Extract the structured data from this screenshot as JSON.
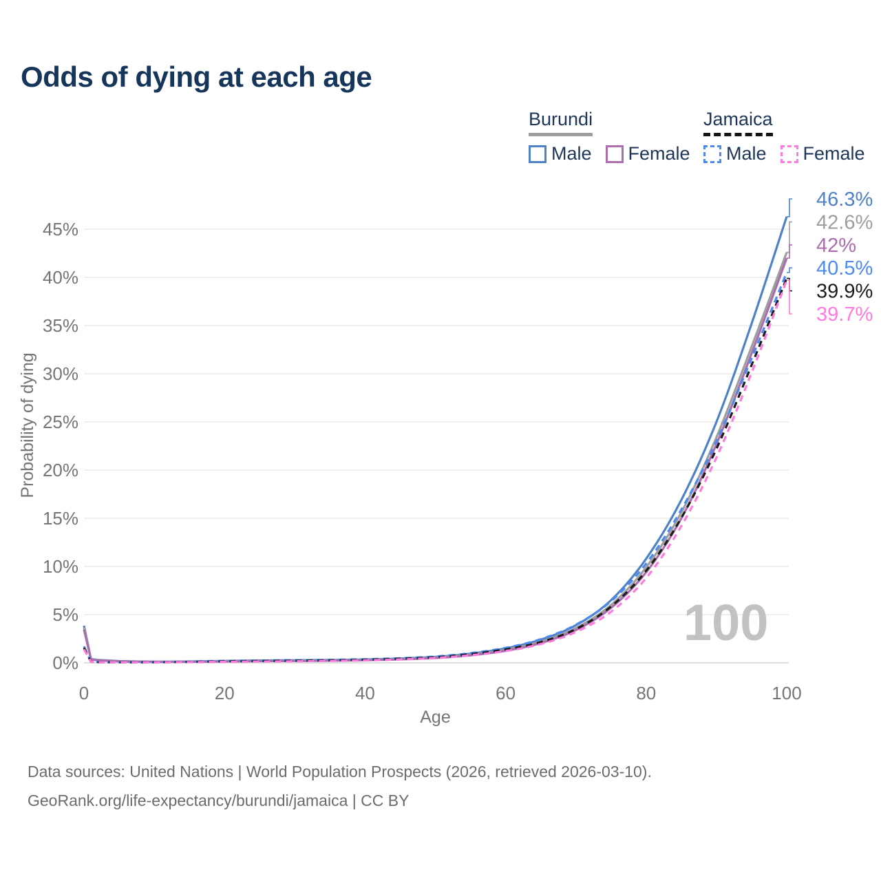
{
  "title": "Odds of dying at each age",
  "watermark": "100",
  "footer": {
    "line1": "Data sources: United Nations | World Population Prospects (2026, retrieved 2026-03-10).",
    "line2": "GeoRank.org/life-expectancy/burundi/jamaica | CC BY"
  },
  "legend": {
    "groups": [
      {
        "name": "Burundi",
        "line_style": "solid",
        "underline_color": "#9e9e9e",
        "items": [
          {
            "label": "Male",
            "color": "#4f81c7",
            "dashed": false
          },
          {
            "label": "Female",
            "color": "#ab6dad",
            "dashed": false
          }
        ]
      },
      {
        "name": "Jamaica",
        "line_style": "dashed",
        "underline_color": "#141414",
        "items": [
          {
            "label": "Male",
            "color": "#4d8af0",
            "dashed": true
          },
          {
            "label": "Female",
            "color": "#ff7ade",
            "dashed": true
          }
        ]
      }
    ]
  },
  "colors": {
    "title_navy": "#16355a",
    "axis_text": "#757575",
    "grid": "#eaeaea",
    "zero_line": "#dedede",
    "watermark": "#c2c2c2",
    "footer_text": "#6b6b6b"
  },
  "chart_data": {
    "type": "line",
    "title": "Odds of dying at each age",
    "xlabel": "Age",
    "ylabel": "Probability of dying",
    "xlim": [
      0,
      100
    ],
    "ylim": [
      0,
      47
    ],
    "grid": "horizontal-only",
    "legend_position": "top-right",
    "x_ticks": [
      0,
      20,
      40,
      60,
      80,
      100
    ],
    "y_ticks": [
      0,
      5,
      10,
      15,
      20,
      25,
      30,
      35,
      40,
      45
    ],
    "y_tick_labels": [
      "0%",
      "5%",
      "10%",
      "15%",
      "20%",
      "25%",
      "30%",
      "35%",
      "40%",
      "45%"
    ],
    "x": [
      0,
      1,
      2,
      5,
      10,
      15,
      20,
      25,
      30,
      35,
      40,
      45,
      50,
      55,
      60,
      65,
      70,
      75,
      80,
      85,
      90,
      95,
      100
    ],
    "series": [
      {
        "name": "Burundi Male",
        "country": "Burundi",
        "sex": "Male",
        "color": "#4f81c7",
        "dash": null,
        "end_label": "46.3%",
        "flag": "burundi",
        "values": [
          3.85,
          0.4,
          0.3,
          0.18,
          0.12,
          0.14,
          0.2,
          0.24,
          0.27,
          0.3,
          0.35,
          0.45,
          0.62,
          0.95,
          1.5,
          2.4,
          3.9,
          6.5,
          10.8,
          16.9,
          25.0,
          35.2,
          46.3
        ]
      },
      {
        "name": "Burundi Both sexes",
        "country": "Burundi",
        "sex": "Both",
        "color": "#9e9e9e",
        "dash": null,
        "end_label": "42.6%",
        "flag": "burundi",
        "values": [
          3.65,
          0.37,
          0.28,
          0.16,
          0.11,
          0.12,
          0.17,
          0.2,
          0.23,
          0.26,
          0.31,
          0.4,
          0.56,
          0.86,
          1.35,
          2.2,
          3.6,
          6.0,
          9.9,
          15.6,
          23.4,
          32.8,
          42.6
        ]
      },
      {
        "name": "Burundi Female",
        "country": "Burundi",
        "sex": "Female",
        "color": "#ab6dad",
        "dash": null,
        "end_label": "42%",
        "flag": "burundi",
        "values": [
          3.45,
          0.34,
          0.26,
          0.15,
          0.1,
          0.11,
          0.14,
          0.17,
          0.19,
          0.22,
          0.27,
          0.36,
          0.5,
          0.78,
          1.25,
          2.05,
          3.4,
          5.7,
          9.4,
          15.0,
          22.7,
          32.1,
          42.0
        ]
      },
      {
        "name": "Jamaica Male",
        "country": "Jamaica",
        "sex": "Male",
        "color": "#4d8af0",
        "dash": "9 7",
        "end_label": "40.5%",
        "flag": "jamaica",
        "values": [
          1.7,
          0.12,
          0.08,
          0.06,
          0.07,
          0.12,
          0.19,
          0.23,
          0.27,
          0.31,
          0.37,
          0.48,
          0.66,
          1.0,
          1.55,
          2.45,
          3.95,
          6.4,
          10.3,
          15.9,
          23.0,
          31.6,
          40.5
        ]
      },
      {
        "name": "Jamaica Both sexes",
        "country": "Jamaica",
        "sex": "Both",
        "color": "#1c1c1c",
        "dash": "9 7",
        "end_label": "39.9%",
        "flag": "jamaica",
        "values": [
          1.55,
          0.11,
          0.07,
          0.05,
          0.06,
          0.1,
          0.15,
          0.18,
          0.22,
          0.26,
          0.32,
          0.42,
          0.58,
          0.9,
          1.4,
          2.15,
          3.5,
          5.85,
          9.55,
          15.05,
          22.2,
          30.9,
          39.9
        ]
      },
      {
        "name": "Jamaica Female",
        "country": "Jamaica",
        "sex": "Female",
        "color": "#ff7ade",
        "dash": "9 7",
        "end_label": "39.7%",
        "flag": "jamaica",
        "values": [
          1.4,
          0.1,
          0.06,
          0.05,
          0.05,
          0.07,
          0.1,
          0.13,
          0.16,
          0.2,
          0.26,
          0.35,
          0.5,
          0.78,
          1.22,
          1.95,
          3.2,
          5.3,
          8.8,
          14.2,
          21.3,
          30.1,
          39.7
        ]
      }
    ]
  }
}
